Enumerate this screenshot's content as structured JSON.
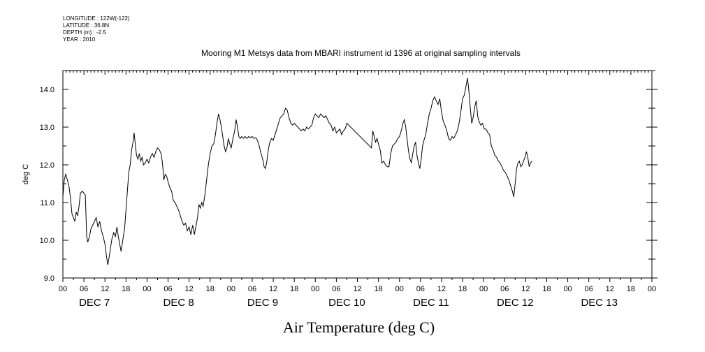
{
  "header": {
    "longitude": "LONGITUDE : 122W(-122)",
    "latitude": "LATITUDE : 36.8N",
    "depth": "DEPTH (m) : -2.5",
    "year": "YEAR : 2010"
  },
  "chart_data": {
    "type": "line",
    "title": "Mooring M1 Metsys data from MBARI instrument id 1396 at original sampling intervals",
    "xlabel": "Air Temperature (deg C)",
    "ylabel": "deg C",
    "ylim": [
      9.0,
      14.5
    ],
    "yticks": [
      9.0,
      10.0,
      11.0,
      12.0,
      13.0,
      14.0
    ],
    "ytick_labels": [
      "9.0",
      "10.0",
      "11.0",
      "12.0",
      "13.0",
      "14.0"
    ],
    "xlim_hours": [
      0,
      168
    ],
    "xtick_hour_labels": [
      "00",
      "06",
      "12",
      "18",
      "00",
      "06",
      "12",
      "18",
      "00",
      "06",
      "12",
      "18",
      "00",
      "06",
      "12",
      "18",
      "00",
      "06",
      "12",
      "18",
      "00",
      "06",
      "12",
      "18",
      "00",
      "06",
      "12",
      "18",
      "00"
    ],
    "day_labels": [
      "DEC 7",
      "DEC 8",
      "DEC 9",
      "DEC 10",
      "DEC 11",
      "DEC 12",
      "DEC 13"
    ],
    "grid": false,
    "series": [
      {
        "color": "#000000",
        "points": [
          [
            0.0,
            11.15
          ],
          [
            0.4,
            11.6
          ],
          [
            0.8,
            11.75
          ],
          [
            1.3,
            11.6
          ],
          [
            1.8,
            11.4
          ],
          [
            2.2,
            11.1
          ],
          [
            2.6,
            10.7
          ],
          [
            3.0,
            10.6
          ],
          [
            3.4,
            10.5
          ],
          [
            3.8,
            10.75
          ],
          [
            4.2,
            10.65
          ],
          [
            4.6,
            10.9
          ],
          [
            5.0,
            11.25
          ],
          [
            5.5,
            11.3
          ],
          [
            6.0,
            11.25
          ],
          [
            6.4,
            11.2
          ],
          [
            6.8,
            10.1
          ],
          [
            7.1,
            9.95
          ],
          [
            7.6,
            10.1
          ],
          [
            8.0,
            10.3
          ],
          [
            8.5,
            10.4
          ],
          [
            9.0,
            10.5
          ],
          [
            9.5,
            10.6
          ],
          [
            10.0,
            10.35
          ],
          [
            10.5,
            10.5
          ],
          [
            11.0,
            10.25
          ],
          [
            11.5,
            10.1
          ],
          [
            12.0,
            9.9
          ],
          [
            12.4,
            9.6
          ],
          [
            12.8,
            9.35
          ],
          [
            13.2,
            9.55
          ],
          [
            13.6,
            9.8
          ],
          [
            14.0,
            10.05
          ],
          [
            14.5,
            10.2
          ],
          [
            15.0,
            10.1
          ],
          [
            15.4,
            10.35
          ],
          [
            15.8,
            10.1
          ],
          [
            16.2,
            9.9
          ],
          [
            16.6,
            9.7
          ],
          [
            17.0,
            9.95
          ],
          [
            17.6,
            10.3
          ],
          [
            18.0,
            10.8
          ],
          [
            18.4,
            11.3
          ],
          [
            18.8,
            11.8
          ],
          [
            19.2,
            12.0
          ],
          [
            19.6,
            12.4
          ],
          [
            20.0,
            12.6
          ],
          [
            20.3,
            12.85
          ],
          [
            20.7,
            12.5
          ],
          [
            21.0,
            12.25
          ],
          [
            21.4,
            12.15
          ],
          [
            21.8,
            12.3
          ],
          [
            22.2,
            12.1
          ],
          [
            22.6,
            12.2
          ],
          [
            23.0,
            12.0
          ],
          [
            23.5,
            12.05
          ],
          [
            24.0,
            12.15
          ],
          [
            24.5,
            12.05
          ],
          [
            25.0,
            12.2
          ],
          [
            25.5,
            12.3
          ],
          [
            26.0,
            12.2
          ],
          [
            26.5,
            12.35
          ],
          [
            27.0,
            12.45
          ],
          [
            27.5,
            12.4
          ],
          [
            28.0,
            12.3
          ],
          [
            28.4,
            12.05
          ],
          [
            28.8,
            11.6
          ],
          [
            29.2,
            11.75
          ],
          [
            29.6,
            11.7
          ],
          [
            30.0,
            11.55
          ],
          [
            30.5,
            11.4
          ],
          [
            31.0,
            11.3
          ],
          [
            31.5,
            11.05
          ],
          [
            32.0,
            11.0
          ],
          [
            32.5,
            10.9
          ],
          [
            33.0,
            10.8
          ],
          [
            33.5,
            10.65
          ],
          [
            34.0,
            10.5
          ],
          [
            34.5,
            10.4
          ],
          [
            35.0,
            10.45
          ],
          [
            35.5,
            10.25
          ],
          [
            36.0,
            10.35
          ],
          [
            36.5,
            10.15
          ],
          [
            37.0,
            10.4
          ],
          [
            37.5,
            10.15
          ],
          [
            38.0,
            10.4
          ],
          [
            38.4,
            10.6
          ],
          [
            38.8,
            10.95
          ],
          [
            39.2,
            10.85
          ],
          [
            39.6,
            11.0
          ],
          [
            40.0,
            10.9
          ],
          [
            40.5,
            11.2
          ],
          [
            41.0,
            11.6
          ],
          [
            41.5,
            12.0
          ],
          [
            42.0,
            12.3
          ],
          [
            42.5,
            12.5
          ],
          [
            43.0,
            12.55
          ],
          [
            43.5,
            12.8
          ],
          [
            44.0,
            13.15
          ],
          [
            44.4,
            13.35
          ],
          [
            44.8,
            13.2
          ],
          [
            45.2,
            13.0
          ],
          [
            45.6,
            12.75
          ],
          [
            46.0,
            12.5
          ],
          [
            46.4,
            12.35
          ],
          [
            46.8,
            12.45
          ],
          [
            47.2,
            12.7
          ],
          [
            47.6,
            12.55
          ],
          [
            48.0,
            12.45
          ],
          [
            48.5,
            12.7
          ],
          [
            49.0,
            12.9
          ],
          [
            49.4,
            13.2
          ],
          [
            49.8,
            13.0
          ],
          [
            50.2,
            12.75
          ],
          [
            50.6,
            12.7
          ],
          [
            51.0,
            12.75
          ],
          [
            51.5,
            12.7
          ],
          [
            52.0,
            12.75
          ],
          [
            52.5,
            12.7
          ],
          [
            53.0,
            12.75
          ],
          [
            53.5,
            12.72
          ],
          [
            54.0,
            12.75
          ],
          [
            54.5,
            12.7
          ],
          [
            55.0,
            12.72
          ],
          [
            55.5,
            12.65
          ],
          [
            56.0,
            12.5
          ],
          [
            56.5,
            12.3
          ],
          [
            57.0,
            12.15
          ],
          [
            57.4,
            11.95
          ],
          [
            57.8,
            11.9
          ],
          [
            58.2,
            12.1
          ],
          [
            58.6,
            12.4
          ],
          [
            59.0,
            12.6
          ],
          [
            59.5,
            12.7
          ],
          [
            60.0,
            12.65
          ],
          [
            60.5,
            12.8
          ],
          [
            61.0,
            12.95
          ],
          [
            61.5,
            13.1
          ],
          [
            62.0,
            13.25
          ],
          [
            62.5,
            13.3
          ],
          [
            63.0,
            13.35
          ],
          [
            63.5,
            13.5
          ],
          [
            64.0,
            13.45
          ],
          [
            64.5,
            13.25
          ],
          [
            65.0,
            13.1
          ],
          [
            65.5,
            13.05
          ],
          [
            66.0,
            13.1
          ],
          [
            66.5,
            13.05
          ],
          [
            67.0,
            13.0
          ],
          [
            67.5,
            12.95
          ],
          [
            68.0,
            12.9
          ],
          [
            68.5,
            12.95
          ],
          [
            69.0,
            12.9
          ],
          [
            69.5,
            13.0
          ],
          [
            70.0,
            12.95
          ],
          [
            70.5,
            13.0
          ],
          [
            71.0,
            13.05
          ],
          [
            71.5,
            13.25
          ],
          [
            72.0,
            13.35
          ],
          [
            72.5,
            13.3
          ],
          [
            73.0,
            13.25
          ],
          [
            73.5,
            13.35
          ],
          [
            74.0,
            13.3
          ],
          [
            74.5,
            13.25
          ],
          [
            75.0,
            13.3
          ],
          [
            75.5,
            13.2
          ],
          [
            76.0,
            13.1
          ],
          [
            76.5,
            13.05
          ],
          [
            77.0,
            12.9
          ],
          [
            77.5,
            13.0
          ],
          [
            78.0,
            12.85
          ],
          [
            78.5,
            12.9
          ],
          [
            79.0,
            12.95
          ],
          [
            79.5,
            12.8
          ],
          [
            80.0,
            12.9
          ],
          [
            80.5,
            12.95
          ],
          [
            81.0,
            13.1
          ],
          [
            88.0,
            12.45
          ],
          [
            88.4,
            12.9
          ],
          [
            88.8,
            12.75
          ],
          [
            89.2,
            12.6
          ],
          [
            89.6,
            12.7
          ],
          [
            90.0,
            12.55
          ],
          [
            90.5,
            12.4
          ],
          [
            91.0,
            12.05
          ],
          [
            91.5,
            12.1
          ],
          [
            92.0,
            12.0
          ],
          [
            92.5,
            11.95
          ],
          [
            93.0,
            11.95
          ],
          [
            93.5,
            12.3
          ],
          [
            94.0,
            12.5
          ],
          [
            94.5,
            12.55
          ],
          [
            95.0,
            12.6
          ],
          [
            95.5,
            12.7
          ],
          [
            96.0,
            12.75
          ],
          [
            96.5,
            12.9
          ],
          [
            97.0,
            13.1
          ],
          [
            97.4,
            13.2
          ],
          [
            97.8,
            13.0
          ],
          [
            98.2,
            12.65
          ],
          [
            98.6,
            12.35
          ],
          [
            99.0,
            12.15
          ],
          [
            99.4,
            12.05
          ],
          [
            99.8,
            12.3
          ],
          [
            100.2,
            12.5
          ],
          [
            100.6,
            12.6
          ],
          [
            101.0,
            12.25
          ],
          [
            101.4,
            12.05
          ],
          [
            101.8,
            11.9
          ],
          [
            102.2,
            12.15
          ],
          [
            102.6,
            12.5
          ],
          [
            103.0,
            12.65
          ],
          [
            103.5,
            12.8
          ],
          [
            104.0,
            13.1
          ],
          [
            104.5,
            13.35
          ],
          [
            105.0,
            13.5
          ],
          [
            105.5,
            13.7
          ],
          [
            106.0,
            13.8
          ],
          [
            106.5,
            13.7
          ],
          [
            107.0,
            13.6
          ],
          [
            107.5,
            13.75
          ],
          [
            108.0,
            13.4
          ],
          [
            108.5,
            13.15
          ],
          [
            109.0,
            13.05
          ],
          [
            109.5,
            12.9
          ],
          [
            110.0,
            12.7
          ],
          [
            110.5,
            12.65
          ],
          [
            111.0,
            12.75
          ],
          [
            111.5,
            12.7
          ],
          [
            112.0,
            12.8
          ],
          [
            112.5,
            12.9
          ],
          [
            113.0,
            13.1
          ],
          [
            113.5,
            13.4
          ],
          [
            114.0,
            13.75
          ],
          [
            114.5,
            13.85
          ],
          [
            115.0,
            14.1
          ],
          [
            115.4,
            14.3
          ],
          [
            115.8,
            13.95
          ],
          [
            116.2,
            13.5
          ],
          [
            116.6,
            13.1
          ],
          [
            117.0,
            13.25
          ],
          [
            117.5,
            13.55
          ],
          [
            117.9,
            13.7
          ],
          [
            118.3,
            13.3
          ],
          [
            118.7,
            13.15
          ],
          [
            119.2,
            13.05
          ],
          [
            119.7,
            13.1
          ],
          [
            120.2,
            12.95
          ],
          [
            120.7,
            12.95
          ],
          [
            121.2,
            12.85
          ],
          [
            121.7,
            12.8
          ],
          [
            122.2,
            12.5
          ],
          [
            122.7,
            12.4
          ],
          [
            123.2,
            12.25
          ],
          [
            123.7,
            12.2
          ],
          [
            124.2,
            12.1
          ],
          [
            124.7,
            12.05
          ],
          [
            125.2,
            11.95
          ],
          [
            125.7,
            11.85
          ],
          [
            126.2,
            11.8
          ],
          [
            126.7,
            11.7
          ],
          [
            127.2,
            11.6
          ],
          [
            127.7,
            11.45
          ],
          [
            128.2,
            11.3
          ],
          [
            128.6,
            11.15
          ],
          [
            129.0,
            11.5
          ],
          [
            129.4,
            11.9
          ],
          [
            129.8,
            12.05
          ],
          [
            130.2,
            12.1
          ],
          [
            130.6,
            11.95
          ],
          [
            131.0,
            12.0
          ],
          [
            131.4,
            12.1
          ],
          [
            131.8,
            12.2
          ],
          [
            132.2,
            12.35
          ],
          [
            132.6,
            12.2
          ],
          [
            133.0,
            11.95
          ],
          [
            133.4,
            12.05
          ],
          [
            133.8,
            12.1
          ]
        ]
      }
    ]
  }
}
